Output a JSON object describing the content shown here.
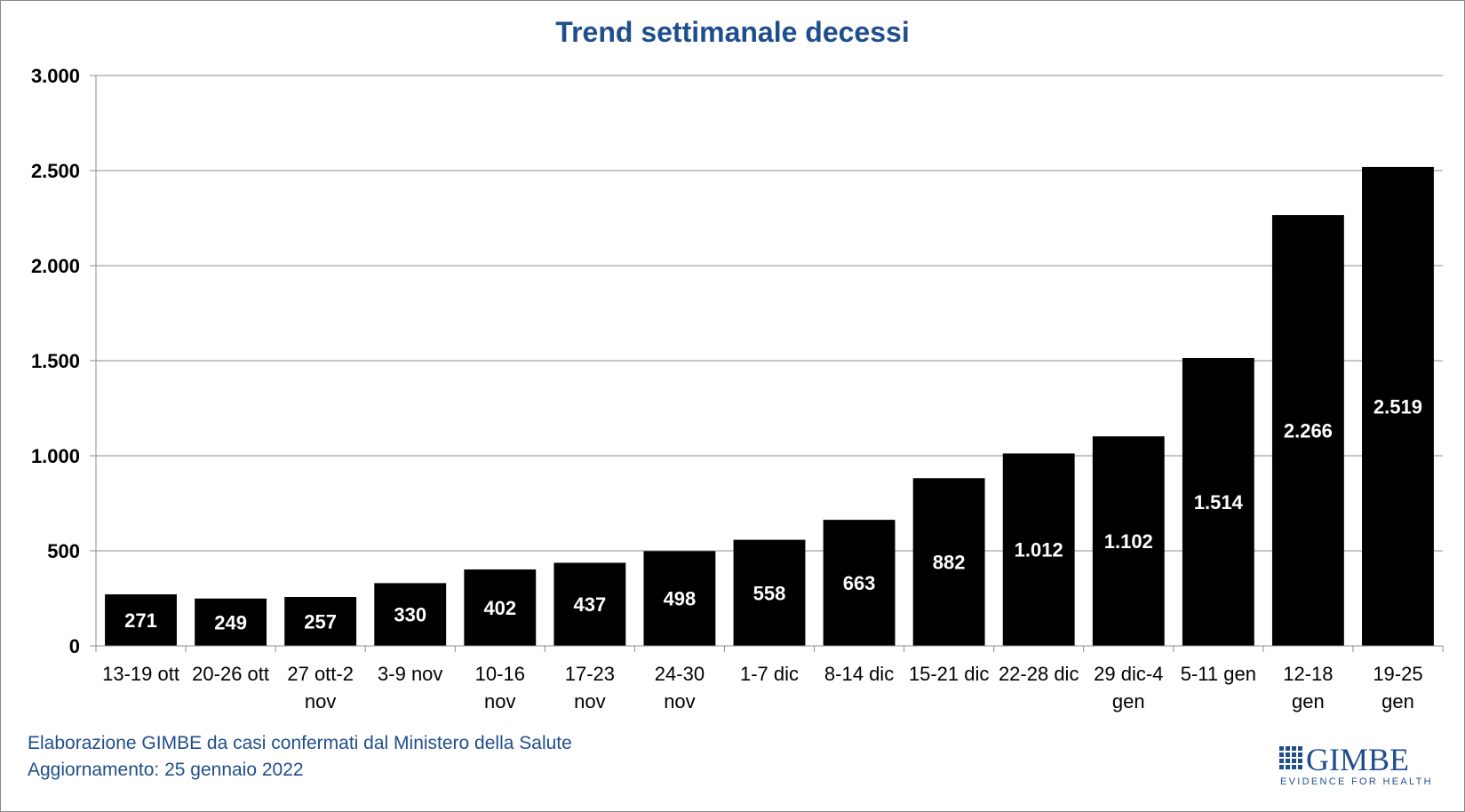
{
  "chart_data": {
    "type": "bar",
    "title": "Trend settimanale decessi",
    "xlabel": "",
    "ylabel": "",
    "ylim": [
      0,
      3000
    ],
    "yticks": [
      0,
      500,
      1000,
      1500,
      2000,
      2500,
      3000
    ],
    "ytick_labels": [
      "0",
      "500",
      "1.000",
      "1.500",
      "2.000",
      "2.500",
      "3.000"
    ],
    "grid": true,
    "legend": "none",
    "bar_color": "#000000",
    "categories": [
      [
        "13-19 ott"
      ],
      [
        "20-26 ott"
      ],
      [
        "27 ott-2",
        "nov"
      ],
      [
        "3-9 nov"
      ],
      [
        "10-16",
        "nov"
      ],
      [
        "17-23",
        "nov"
      ],
      [
        "24-30",
        "nov"
      ],
      [
        "1-7 dic"
      ],
      [
        "8-14 dic"
      ],
      [
        "15-21 dic"
      ],
      [
        "22-28 dic"
      ],
      [
        "29 dic-4",
        "gen"
      ],
      [
        "5-11 gen"
      ],
      [
        "12-18",
        "gen"
      ],
      [
        "19-25",
        "gen"
      ]
    ],
    "values": [
      271,
      249,
      257,
      330,
      402,
      437,
      498,
      558,
      663,
      882,
      1012,
      1102,
      1514,
      2266,
      2519
    ],
    "value_labels": [
      "271",
      "249",
      "257",
      "330",
      "402",
      "437",
      "498",
      "558",
      "663",
      "882",
      "1.012",
      "1.102",
      "1.514",
      "2.266",
      "2.519"
    ]
  },
  "footer": {
    "line1": "Elaborazione GIMBE da casi confermati dal Ministero della Salute",
    "line2": "Aggiornamento: 25 gennaio 2022"
  },
  "logo": {
    "word": "GIMBE",
    "tagline": "EVIDENCE FOR HEALTH",
    "color": "#1f4e8c"
  }
}
